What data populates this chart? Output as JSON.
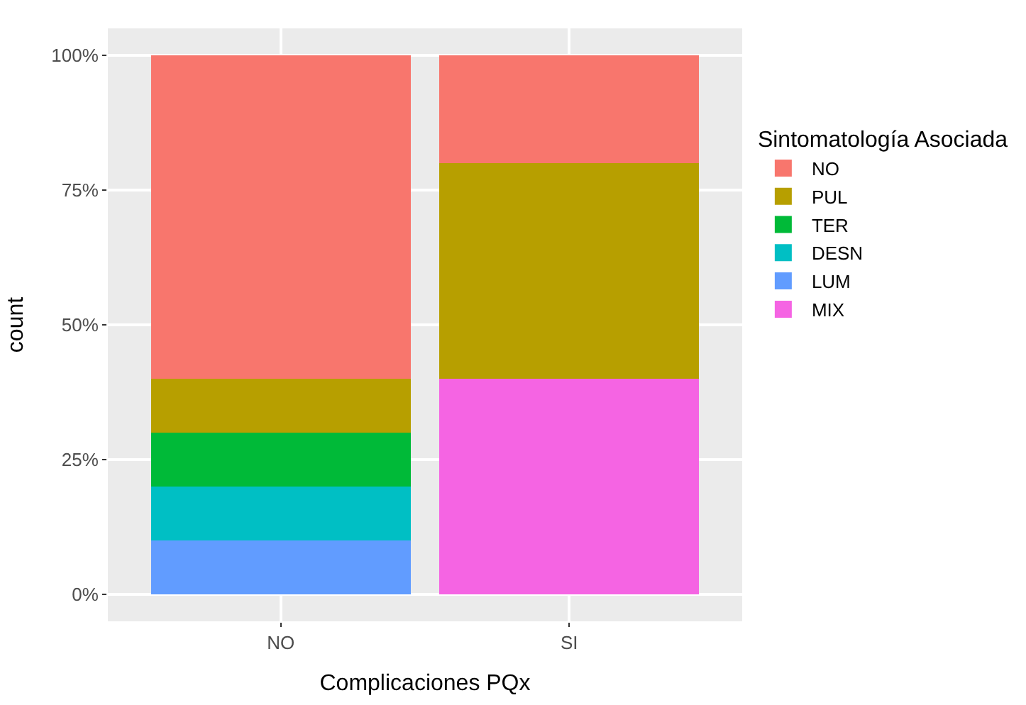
{
  "chart_data": {
    "type": "bar",
    "stacked": true,
    "xlabel": "Complicaciones PQx",
    "ylabel": "count",
    "legend_title": "Sintomatología Asociada",
    "categories": [
      "NO",
      "SI"
    ],
    "series": [
      {
        "name": "MIX",
        "color": "#f564e3",
        "values": [
          null,
          0.4
        ]
      },
      {
        "name": "LUM",
        "color": "#619cff",
        "values": [
          0.1,
          null
        ]
      },
      {
        "name": "DESN",
        "color": "#00bfc4",
        "values": [
          0.1,
          null
        ]
      },
      {
        "name": "TER",
        "color": "#00ba38",
        "values": [
          0.1,
          null
        ]
      },
      {
        "name": "PUL",
        "color": "#b79f00",
        "values": [
          0.1,
          0.4
        ]
      },
      {
        "name": "NO",
        "color": "#f8766d",
        "values": [
          0.6,
          0.2
        ]
      }
    ],
    "ylim": [
      -0.05,
      1.05
    ],
    "yticks": [
      {
        "value": 0,
        "label": "0%"
      },
      {
        "value": 0.25,
        "label": "25%"
      },
      {
        "value": 0.5,
        "label": "50%"
      },
      {
        "value": 0.75,
        "label": "75%"
      },
      {
        "value": 1,
        "label": "100%"
      }
    ],
    "grid": true,
    "legend": "right"
  }
}
